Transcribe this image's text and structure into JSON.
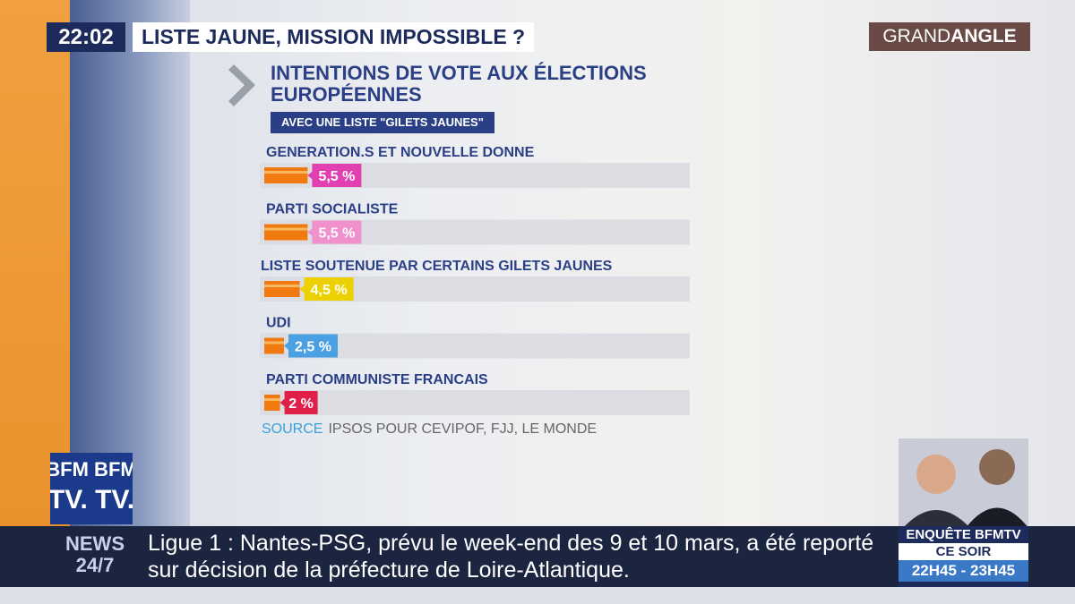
{
  "header": {
    "time": "22:02",
    "headline": "LISTE JAUNE, MISSION IMPOSSIBLE ?",
    "program": [
      "GRAND",
      "ANGLE"
    ]
  },
  "chart_data": {
    "type": "bar",
    "orientation": "horizontal",
    "title": "INTENTIONS DE VOTE AUX ÉLECTIONS EUROPÉENNES",
    "subtitle": "AVEC UNE LISTE \"GILETS JAUNES\"",
    "categories": [
      "GENERATION.S ET NOUVELLE DONNE",
      "PARTI SOCIALISTE",
      "LISTE SOUTENUE PAR CERTAINS GILETS JAUNES",
      "UDI",
      "PARTI COMMUNISTE FRANCAIS"
    ],
    "values": [
      5.5,
      5.5,
      4.5,
      2.5,
      2
    ],
    "value_labels": [
      "5,5 %",
      "5,5 %",
      "4,5 %",
      "2,5 %",
      "2 %"
    ],
    "color": "#f07a10",
    "label_colors": [
      "#e040b0",
      "#f090cc",
      "#ecd000",
      "#4aa0e0",
      "#e02048"
    ],
    "source_label": "SOURCE",
    "source": "IPSOS POUR CEVIPOF, FJJ, LE MONDE"
  },
  "logo": [
    "BFM BFM",
    "TV. TV."
  ],
  "ticker": {
    "label": [
      "NEWS",
      "24/7"
    ],
    "text": "Ligue 1 : Nantes-PSG, prévu le week-end des 9 et 10 mars, a été reporté sur décision de la préfecture de Loire-Atlantique."
  },
  "promo": {
    "title": "ENQUÊTE BFMTV",
    "when": "CE SOIR",
    "time": "22H45 - 23H45"
  }
}
